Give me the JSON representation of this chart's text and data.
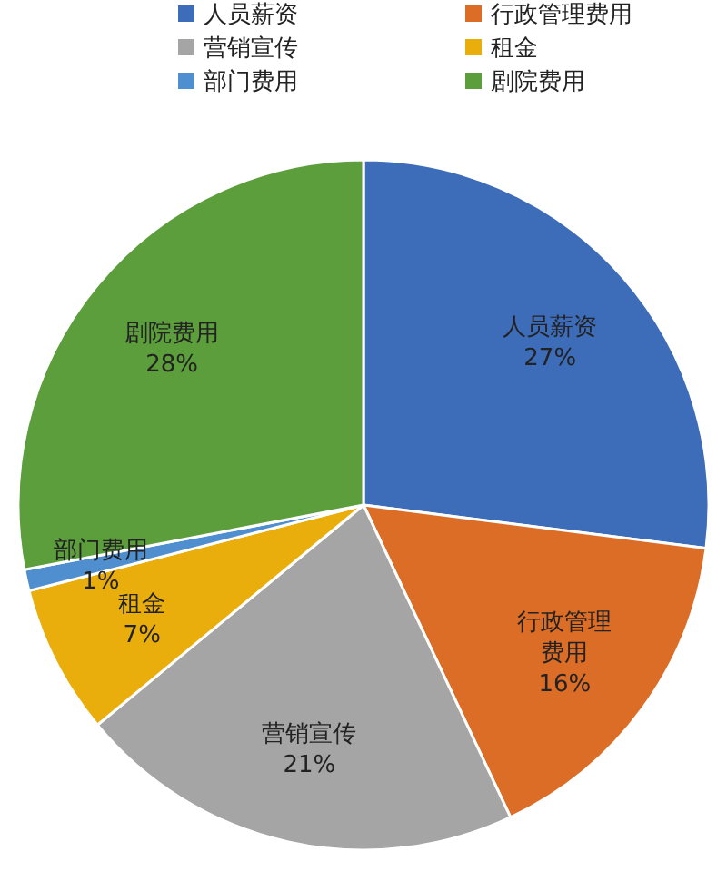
{
  "chart_data": {
    "type": "pie",
    "categories": [
      "人员薪资",
      "行政管理费用",
      "营销宣传",
      "租金",
      "部门费用",
      "剧院费用"
    ],
    "values": [
      27,
      16,
      21,
      7,
      1,
      28
    ],
    "colors": [
      "#3d6cb9",
      "#dc6d27",
      "#a5a5a5",
      "#eaae0c",
      "#4f8fcf",
      "#5b9e3b"
    ],
    "value_labels": [
      "27%",
      "16%",
      "21%",
      "7%",
      "1%",
      "28%"
    ],
    "legend": "top"
  }
}
